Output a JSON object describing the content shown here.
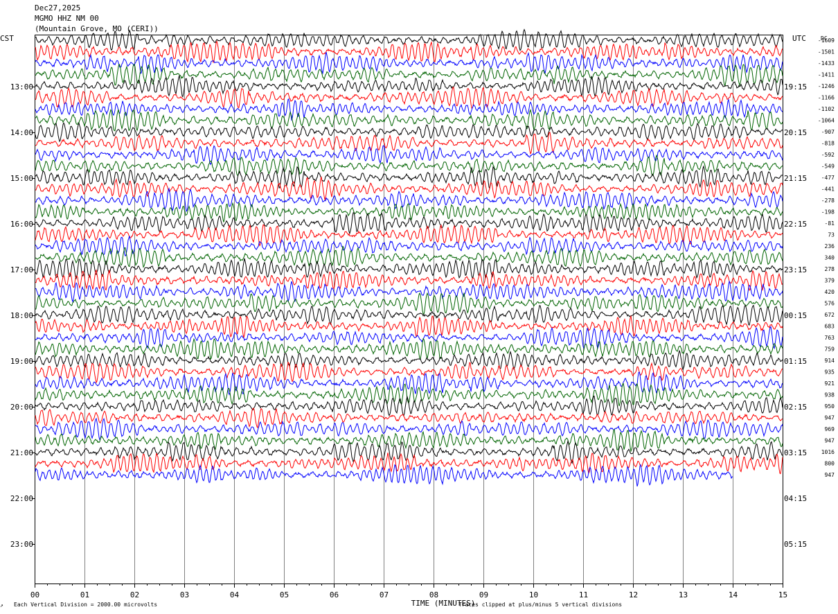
{
  "header": {
    "date": "Dec27,2025",
    "station": "MGMO HHZ NM 00",
    "location": "(Mountain Grove, MO (CERI))"
  },
  "axis": {
    "left_tz": "CST",
    "right_tz": "UTC",
    "dc_label": "DC",
    "xlabel": "TIME (MINUTES)",
    "x_ticks": [
      "00",
      "01",
      "02",
      "03",
      "04",
      "05",
      "06",
      "07",
      "08",
      "09",
      "10",
      "11",
      "12",
      "13",
      "14",
      "15"
    ]
  },
  "footer": {
    "scale_note": "Each Vertical Division = 2000.00 microvolts",
    "clip_note": "Traces clipped at plus/minus 5 vertical divisions",
    "corner_mark": "↗"
  },
  "chart_data": {
    "type": "line",
    "title": "MGMO HHZ NM 00",
    "xlabel": "TIME (MINUTES)",
    "xlim": [
      0,
      15
    ],
    "grid": true,
    "traces_per_hour": 4,
    "trace_colors": [
      "#000000",
      "#ff0000",
      "#0000ff",
      "#006400"
    ],
    "left_hour_labels": [
      "13:00",
      "14:00",
      "15:00",
      "16:00",
      "17:00",
      "18:00",
      "19:00",
      "20:00",
      "21:00",
      "22:00",
      "23:00"
    ],
    "right_hour_labels": [
      "19:15",
      "20:15",
      "21:15",
      "22:15",
      "23:15",
      "00:15",
      "01:15",
      "02:15",
      "03:15",
      "04:15",
      "05:15"
    ],
    "dc_offsets": [
      -1609,
      -1501,
      -1433,
      -1411,
      -1246,
      -1166,
      -1102,
      -1064,
      -907,
      -818,
      -592,
      -549,
      -477,
      -441,
      -278,
      -198,
      -81,
      73,
      236,
      340,
      278,
      379,
      420,
      576,
      672,
      683,
      763,
      759,
      914,
      935,
      921,
      938,
      950,
      947,
      969,
      947,
      1016,
      800,
      947
    ],
    "last_trace_end_minute": 14.0
  }
}
